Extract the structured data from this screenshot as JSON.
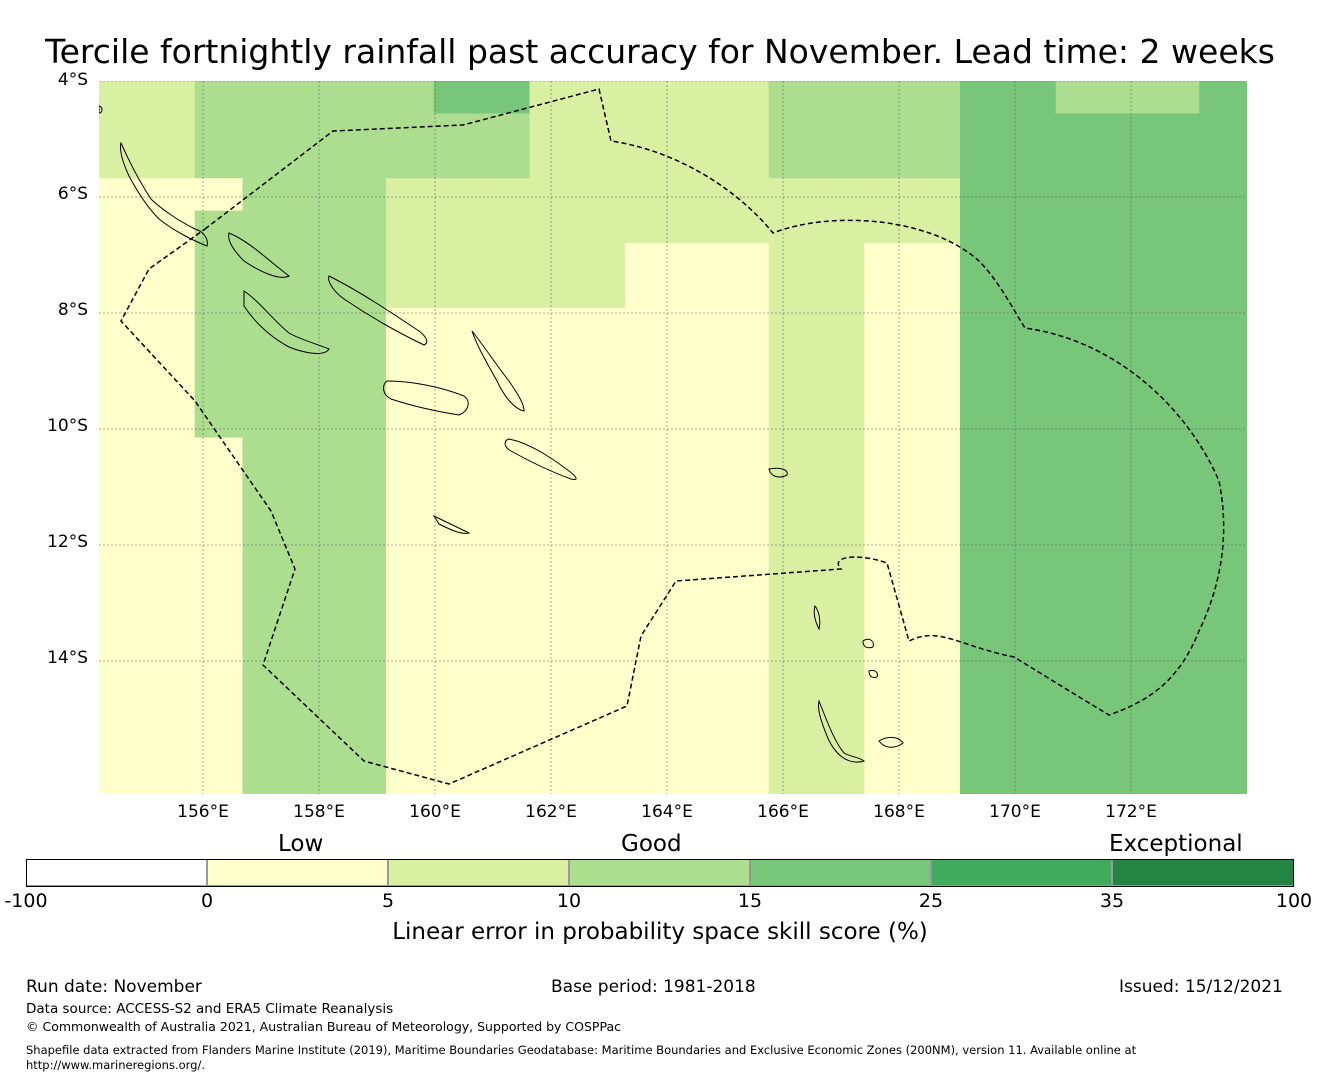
{
  "title": "Tercile fortnightly rainfall past accuracy for November. Lead time: 2 weeks",
  "map": {
    "lat_labels": [
      "4°S",
      "6°S",
      "8°S",
      "10°S",
      "12°S",
      "14°S"
    ],
    "lon_labels": [
      "156°E",
      "158°E",
      "160°E",
      "162°E",
      "164°E",
      "166°E",
      "168°E",
      "170°E",
      "172°E"
    ],
    "grid_columns": 24,
    "grid_rows": 22,
    "grid_levels": [
      "223333344222223333443334",
      "223333333222223333444444",
      "223333333222223333444444",
      "111333222222222222444444",
      "113333222222222222444444",
      "113333222221112211444444",
      "113333222221112211444444",
      "113333111111112211444444",
      "113333111111112211444444",
      "113333111111112211444444",
      "113333111111112211444444",
      "111333111111112211444444",
      "111333111111112211444444",
      "111333111111112211444444",
      "111333111111112211444444",
      "111333111111112211444444",
      "111333111111112211444444",
      "111333111111112211444444",
      "111333111111112211444444",
      "111333111111112211444444",
      "111333111111112211444444",
      "111333111111112211444444"
    ],
    "grid_levels_note": "",
    "cell_classes": "level index 0-6 into colorbar.colors"
  },
  "colorbar": {
    "category_labels": [
      "Low",
      "Good",
      "Exceptional"
    ],
    "ticks": [
      "-100",
      "0",
      "5",
      "10",
      "15",
      "25",
      "35",
      "100"
    ],
    "colors": [
      "#ffffff",
      "#ffffcc",
      "#d9f0a3",
      "#addd8e",
      "#78c679",
      "#41ab5d",
      "#238443"
    ],
    "label": "Linear error in probability space skill score (%)"
  },
  "footer": {
    "run_date": "Run date: November",
    "base_period": "Base period: 1981-2018",
    "issued": "Issued: 15/12/2021",
    "data_source": "Data source: ACCESS-S2 and ERA5 Climate Reanalysis",
    "copyright": "© Commonwealth of Australia 2021, Australian Bureau of Meteorology, Supported by COSPPac",
    "shapefile_line1": "Shapefile data extracted from Flanders Marine Institute (2019), Maritime Boundaries Geodatabase: Maritime Boundaries and Exclusive Economic Zones (200NM), version 11. Available online at",
    "shapefile_line2": "http://www.marineregions.org/."
  }
}
